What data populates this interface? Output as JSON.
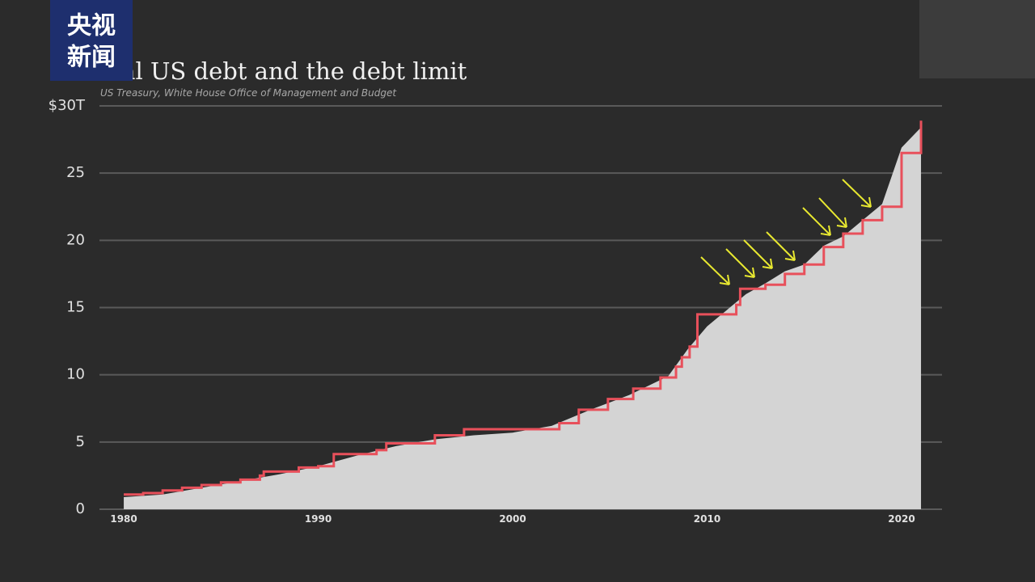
{
  "logo": {
    "line1": "央视",
    "line2": "新闻"
  },
  "chart_data": {
    "type": "area",
    "title": "Total US debt and the debt limit",
    "subtitle": "US Treasury, White House Office of Management and Budget",
    "xlim": [
      1978.75,
      2022.08
    ],
    "xticks": [
      1980,
      1990,
      2000,
      2010,
      2020
    ],
    "ylim": [
      0,
      30
    ],
    "yticks": [
      0,
      5,
      10,
      15,
      20,
      25,
      {
        "value": 30,
        "label": "$30T"
      }
    ],
    "grid": true,
    "series": [
      {
        "type": "area",
        "color": "#d4d4d4",
        "x": [
          1980,
          1982,
          1984,
          1986,
          1988,
          1990,
          1992,
          1994,
          1996,
          1998,
          2000,
          2002,
          2004,
          2006,
          2008,
          2009,
          2010,
          2011,
          2012,
          2013,
          2014,
          2015,
          2016,
          2017,
          2018,
          2019,
          2020,
          2021
        ],
        "values": [
          0.9,
          1.1,
          1.6,
          2.1,
          2.6,
          3.2,
          4.0,
          4.7,
          5.2,
          5.5,
          5.7,
          6.2,
          7.4,
          8.5,
          9.9,
          11.9,
          13.6,
          14.8,
          16.0,
          16.8,
          17.7,
          18.2,
          19.6,
          20.3,
          21.5,
          22.7,
          26.9,
          28.4
        ]
      },
      {
        "type": "step",
        "color": "#e8505b",
        "x": [
          1980,
          1981,
          1982,
          1983,
          1984,
          1985,
          1986,
          1987,
          1987.2,
          1989,
          1990,
          1990.8,
          1993,
          1993.5,
          1996,
          1997.5,
          2002.4,
          2003.4,
          2004.9,
          2006.2,
          2007.6,
          2008.4,
          2008.7,
          2009.1,
          2009.5,
          2011.5,
          2011.7,
          2013,
          2014,
          2015,
          2016,
          2017,
          2018,
          2019,
          2020,
          2021
        ],
        "values": [
          1.1,
          1.2,
          1.4,
          1.6,
          1.8,
          2.0,
          2.2,
          2.5,
          2.8,
          3.1,
          3.2,
          4.1,
          4.4,
          4.9,
          5.5,
          5.95,
          6.4,
          7.4,
          8.2,
          8.97,
          9.8,
          10.6,
          11.3,
          12.1,
          14.5,
          15.2,
          16.4,
          16.7,
          17.5,
          18.2,
          19.5,
          20.5,
          21.5,
          22.5,
          26.5,
          28.9
        ]
      }
    ]
  }
}
